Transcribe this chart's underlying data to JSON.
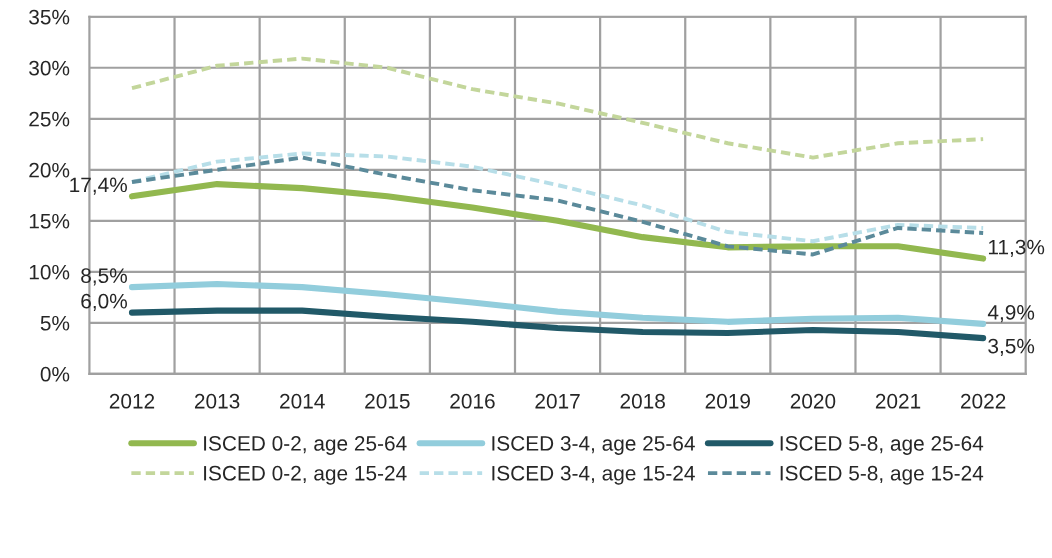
{
  "chart_data": {
    "type": "line",
    "categories": [
      "2012",
      "2013",
      "2014",
      "2015",
      "2016",
      "2017",
      "2018",
      "2019",
      "2020",
      "2021",
      "2022"
    ],
    "ylim": [
      0,
      35
    ],
    "yticks": [
      {
        "value": 0,
        "label": "0%"
      },
      {
        "value": 5,
        "label": "5%"
      },
      {
        "value": 10,
        "label": "10%"
      },
      {
        "value": 15,
        "label": "15%"
      },
      {
        "value": 20,
        "label": "20%"
      },
      {
        "value": 25,
        "label": "25%"
      },
      {
        "value": 30,
        "label": "30%"
      },
      {
        "value": 35,
        "label": "35%"
      }
    ],
    "grid": true,
    "legend": "bottom",
    "series": [
      {
        "name": "ISCED 0-2, age 25-64",
        "color": "#92b84f",
        "line_style": "solid",
        "values": [
          17.4,
          18.6,
          18.2,
          17.4,
          16.3,
          15.0,
          13.4,
          12.4,
          12.5,
          12.5,
          11.3
        ],
        "value_labels": [
          "17,4%",
          null,
          null,
          null,
          null,
          null,
          null,
          null,
          null,
          null,
          "11,3%"
        ]
      },
      {
        "name": "ISCED 3-4, age 25-64",
        "color": "#92cddc",
        "line_style": "solid",
        "values": [
          8.5,
          8.8,
          8.5,
          7.8,
          7.0,
          6.1,
          5.5,
          5.1,
          5.4,
          5.5,
          4.9
        ],
        "value_labels": [
          "8,5%",
          null,
          null,
          null,
          null,
          null,
          null,
          null,
          null,
          null,
          "4,9%"
        ]
      },
      {
        "name": "ISCED 5-8, age 25-64",
        "color": "#215968",
        "line_style": "solid",
        "values": [
          6.0,
          6.2,
          6.2,
          5.6,
          5.1,
          4.5,
          4.1,
          4.0,
          4.3,
          4.1,
          3.5
        ],
        "value_labels": [
          "6,0%",
          null,
          null,
          null,
          null,
          null,
          null,
          null,
          null,
          null,
          "3,5%"
        ]
      },
      {
        "name": "ISCED 0-2, age 15-24",
        "color": "#c3d69b",
        "line_style": "dashed",
        "values": [
          28.0,
          30.2,
          30.9,
          30.0,
          27.9,
          26.5,
          24.6,
          22.6,
          21.2,
          22.6,
          23.0
        ]
      },
      {
        "name": "ISCED 3-4, age 15-24",
        "color": "#b7dee8",
        "line_style": "dashed",
        "values": [
          18.8,
          20.8,
          21.6,
          21.3,
          20.3,
          18.5,
          16.5,
          13.9,
          13.0,
          14.6,
          14.3
        ]
      },
      {
        "name": "ISCED 5-8, age 15-24",
        "color": "#5b8a9a",
        "line_style": "dashed",
        "values": [
          18.8,
          20.0,
          21.2,
          19.5,
          18.0,
          17.0,
          14.9,
          12.5,
          11.7,
          14.3,
          13.8
        ]
      }
    ]
  }
}
